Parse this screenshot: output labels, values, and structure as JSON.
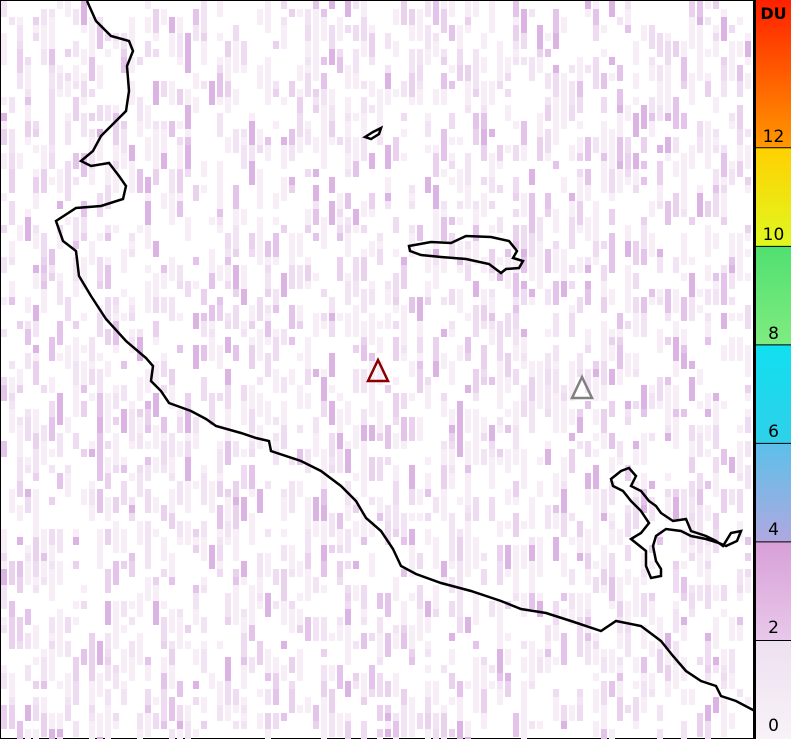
{
  "colorbar": {
    "unit": "DU",
    "ticks": [
      "0",
      "2",
      "4",
      "6",
      "8",
      "10",
      "12"
    ],
    "range": [
      0,
      15
    ],
    "bands": [
      {
        "from": 0,
        "to": 2,
        "colors": [
          "#f8f2f8",
          "#ede0f0"
        ]
      },
      {
        "from": 2,
        "to": 4,
        "colors": [
          "#e8c8ea",
          "#d8a0d8"
        ]
      },
      {
        "from": 4,
        "to": 6,
        "colors": [
          "#b0a8e0",
          "#5cc0ea"
        ]
      },
      {
        "from": 6,
        "to": 8,
        "colors": [
          "#30d0ea",
          "#10e0f0"
        ]
      },
      {
        "from": 8,
        "to": 10,
        "colors": [
          "#80ec80",
          "#50e070"
        ]
      },
      {
        "from": 10,
        "to": 12,
        "colors": [
          "#e0f820",
          "#ffd000"
        ]
      },
      {
        "from": 12,
        "to": 15,
        "colors": [
          "#ff9800",
          "#ff2000"
        ]
      }
    ]
  },
  "markers": [
    {
      "name": "volcano-marker-primary",
      "color": "#8b0000"
    },
    {
      "name": "volcano-marker-secondary",
      "color": "#808080"
    }
  ],
  "background_color": "#ffffff"
}
